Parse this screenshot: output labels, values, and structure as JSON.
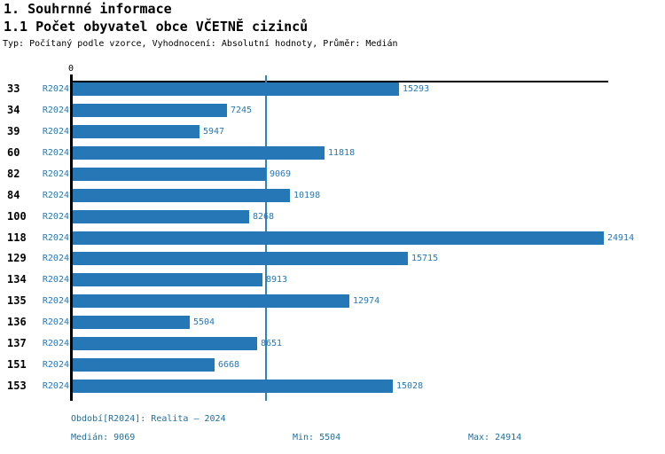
{
  "header": {
    "title": "1. Souhrnné informace",
    "subtitle": "1.1 Počet obyvatel obce VČETNĚ cizinců",
    "meta": "Typ: Počítaný podle vzorce, Vyhodnocení: Absolutní hodnoty, Průměr: Medián"
  },
  "chart_data": {
    "type": "bar",
    "orientation": "horizontal",
    "title": "1.1 Počet obyvatel obce VČETNĚ cizinců",
    "series_label": "R2024",
    "categories": [
      "33",
      "34",
      "39",
      "60",
      "82",
      "84",
      "100",
      "118",
      "129",
      "134",
      "135",
      "136",
      "137",
      "151",
      "153"
    ],
    "values": [
      15293,
      7245,
      5947,
      11818,
      9069,
      10198,
      8268,
      24914,
      15715,
      8913,
      12974,
      5504,
      8651,
      6668,
      15028
    ],
    "x_zero_label": "0",
    "xlim": [
      0,
      25000
    ],
    "median_value": 9069,
    "min_value": 5504,
    "max_value": 24914,
    "grid": false,
    "bar_color": "#2577b5",
    "median_line_color": "#2e84c0",
    "label_color": "#2577b5",
    "axis_color": "#000000"
  },
  "footer": {
    "period": "Období[R2024]: Realita – 2024",
    "median": "Medián: 9069",
    "min": "Min: 5504",
    "max": "Max: 24914",
    "text_color": "#1d6f9f"
  }
}
